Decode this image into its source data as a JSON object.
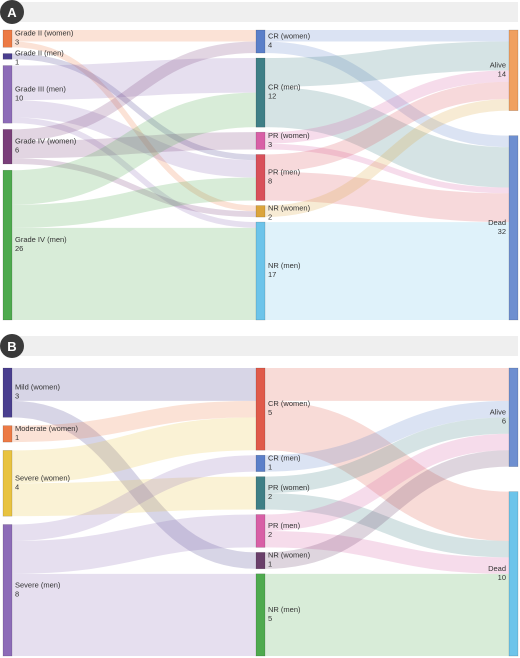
{
  "panels": [
    {
      "id": "A",
      "badge": "A",
      "nodes": [
        {
          "id": "a_g2w",
          "label": "Grade II (women)",
          "value": 3,
          "color": "#ec7a45",
          "col": 0
        },
        {
          "id": "a_g2m",
          "label": "Grade II (men)",
          "value": 1,
          "color": "#4a3f8f",
          "col": 0
        },
        {
          "id": "a_g3m",
          "label": "Grade III (men)",
          "value": 10,
          "color": "#8d6cb8",
          "col": 0
        },
        {
          "id": "a_g4w",
          "label": "Grade IV (women)",
          "value": 6,
          "color": "#7a3f7a",
          "col": 0
        },
        {
          "id": "a_g4m",
          "label": "Grade IV (men)",
          "value": 26,
          "color": "#4eaa4e",
          "col": 0
        },
        {
          "id": "a_crw",
          "label": "CR (women)",
          "value": 4,
          "color": "#5b7fc9",
          "col": 1
        },
        {
          "id": "a_crm",
          "label": "CR (men)",
          "value": 12,
          "color": "#3f7f86",
          "col": 1
        },
        {
          "id": "a_prw",
          "label": "PR (women)",
          "value": 3,
          "color": "#d85fa6",
          "col": 1
        },
        {
          "id": "a_prm",
          "label": "PR (men)",
          "value": 8,
          "color": "#d9505a",
          "col": 1
        },
        {
          "id": "a_nrw",
          "label": "NR (women)",
          "value": 2,
          "color": "#dba43c",
          "col": 1
        },
        {
          "id": "a_nrm",
          "label": "NR (men)",
          "value": 17,
          "color": "#6cc4ea",
          "col": 1
        },
        {
          "id": "a_alive",
          "label": "Alive",
          "value": 14,
          "color": "#f0a060",
          "col": 2
        },
        {
          "id": "a_dead",
          "label": "Dead",
          "value": 32,
          "color": "#6e8fd0",
          "col": 2
        }
      ],
      "links": [
        {
          "source": "a_g2w",
          "target": "a_crw",
          "value": 2
        },
        {
          "source": "a_g2w",
          "target": "a_nrw",
          "value": 1
        },
        {
          "source": "a_g2m",
          "target": "a_prm",
          "value": 1
        },
        {
          "source": "a_g3m",
          "target": "a_crm",
          "value": 6
        },
        {
          "source": "a_g3m",
          "target": "a_prm",
          "value": 3
        },
        {
          "source": "a_g3m",
          "target": "a_nrm",
          "value": 1
        },
        {
          "source": "a_g4w",
          "target": "a_crw",
          "value": 2
        },
        {
          "source": "a_g4w",
          "target": "a_prw",
          "value": 3
        },
        {
          "source": "a_g4w",
          "target": "a_nrw",
          "value": 1
        },
        {
          "source": "a_g4m",
          "target": "a_crm",
          "value": 6
        },
        {
          "source": "a_g4m",
          "target": "a_prm",
          "value": 4
        },
        {
          "source": "a_g4m",
          "target": "a_nrm",
          "value": 16
        },
        {
          "source": "a_crw",
          "target": "a_alive",
          "value": 2
        },
        {
          "source": "a_crw",
          "target": "a_dead",
          "value": 2
        },
        {
          "source": "a_crm",
          "target": "a_alive",
          "value": 5
        },
        {
          "source": "a_crm",
          "target": "a_dead",
          "value": 7
        },
        {
          "source": "a_prw",
          "target": "a_alive",
          "value": 2
        },
        {
          "source": "a_prw",
          "target": "a_dead",
          "value": 1
        },
        {
          "source": "a_prm",
          "target": "a_alive",
          "value": 3
        },
        {
          "source": "a_prm",
          "target": "a_dead",
          "value": 5
        },
        {
          "source": "a_nrw",
          "target": "a_alive",
          "value": 2
        },
        {
          "source": "a_nrm",
          "target": "a_dead",
          "value": 17
        }
      ]
    },
    {
      "id": "B",
      "badge": "B",
      "nodes": [
        {
          "id": "b_mildw",
          "label": "Mild (women)",
          "value": 3,
          "color": "#4a3f8f",
          "col": 0
        },
        {
          "id": "b_modw",
          "label": "Moderate (women)",
          "value": 1,
          "color": "#ec7a45",
          "col": 0
        },
        {
          "id": "b_sevw",
          "label": "Severe (women)",
          "value": 4,
          "color": "#e8c340",
          "col": 0
        },
        {
          "id": "b_sevm",
          "label": "Severe (men)",
          "value": 8,
          "color": "#8d6cb8",
          "col": 0
        },
        {
          "id": "b_crw",
          "label": "CR (women)",
          "value": 5,
          "color": "#e05a4a",
          "col": 1
        },
        {
          "id": "b_crm",
          "label": "CR (men)",
          "value": 1,
          "color": "#5b7fc9",
          "col": 1
        },
        {
          "id": "b_prw",
          "label": "PR (women)",
          "value": 2,
          "color": "#3f7f86",
          "col": 1
        },
        {
          "id": "b_prm",
          "label": "PR (men)",
          "value": 2,
          "color": "#d85fa6",
          "col": 1
        },
        {
          "id": "b_nrw",
          "label": "NR (women)",
          "value": 1,
          "color": "#6a3f6a",
          "col": 1
        },
        {
          "id": "b_nrm",
          "label": "NR (men)",
          "value": 5,
          "color": "#4eaa4e",
          "col": 1
        },
        {
          "id": "b_alive",
          "label": "Alive",
          "value": 6,
          "color": "#6e8fd0",
          "col": 2
        },
        {
          "id": "b_dead",
          "label": "Dead",
          "value": 10,
          "color": "#6cc4ea",
          "col": 2
        }
      ],
      "links": [
        {
          "source": "b_mildw",
          "target": "b_crw",
          "value": 2
        },
        {
          "source": "b_mildw",
          "target": "b_nrw",
          "value": 1
        },
        {
          "source": "b_modw",
          "target": "b_crw",
          "value": 1
        },
        {
          "source": "b_sevw",
          "target": "b_crw",
          "value": 2
        },
        {
          "source": "b_sevw",
          "target": "b_prw",
          "value": 2
        },
        {
          "source": "b_sevm",
          "target": "b_crm",
          "value": 1
        },
        {
          "source": "b_sevm",
          "target": "b_prm",
          "value": 2
        },
        {
          "source": "b_sevm",
          "target": "b_nrm",
          "value": 5
        },
        {
          "source": "b_crw",
          "target": "b_alive",
          "value": 2
        },
        {
          "source": "b_crw",
          "target": "b_dead",
          "value": 3
        },
        {
          "source": "b_crm",
          "target": "b_alive",
          "value": 1
        },
        {
          "source": "b_prw",
          "target": "b_alive",
          "value": 1
        },
        {
          "source": "b_prw",
          "target": "b_dead",
          "value": 1
        },
        {
          "source": "b_prm",
          "target": "b_alive",
          "value": 1
        },
        {
          "source": "b_prm",
          "target": "b_dead",
          "value": 1
        },
        {
          "source": "b_nrw",
          "target": "b_alive",
          "value": 1
        },
        {
          "source": "b_nrm",
          "target": "b_dead",
          "value": 5
        }
      ]
    }
  ]
}
